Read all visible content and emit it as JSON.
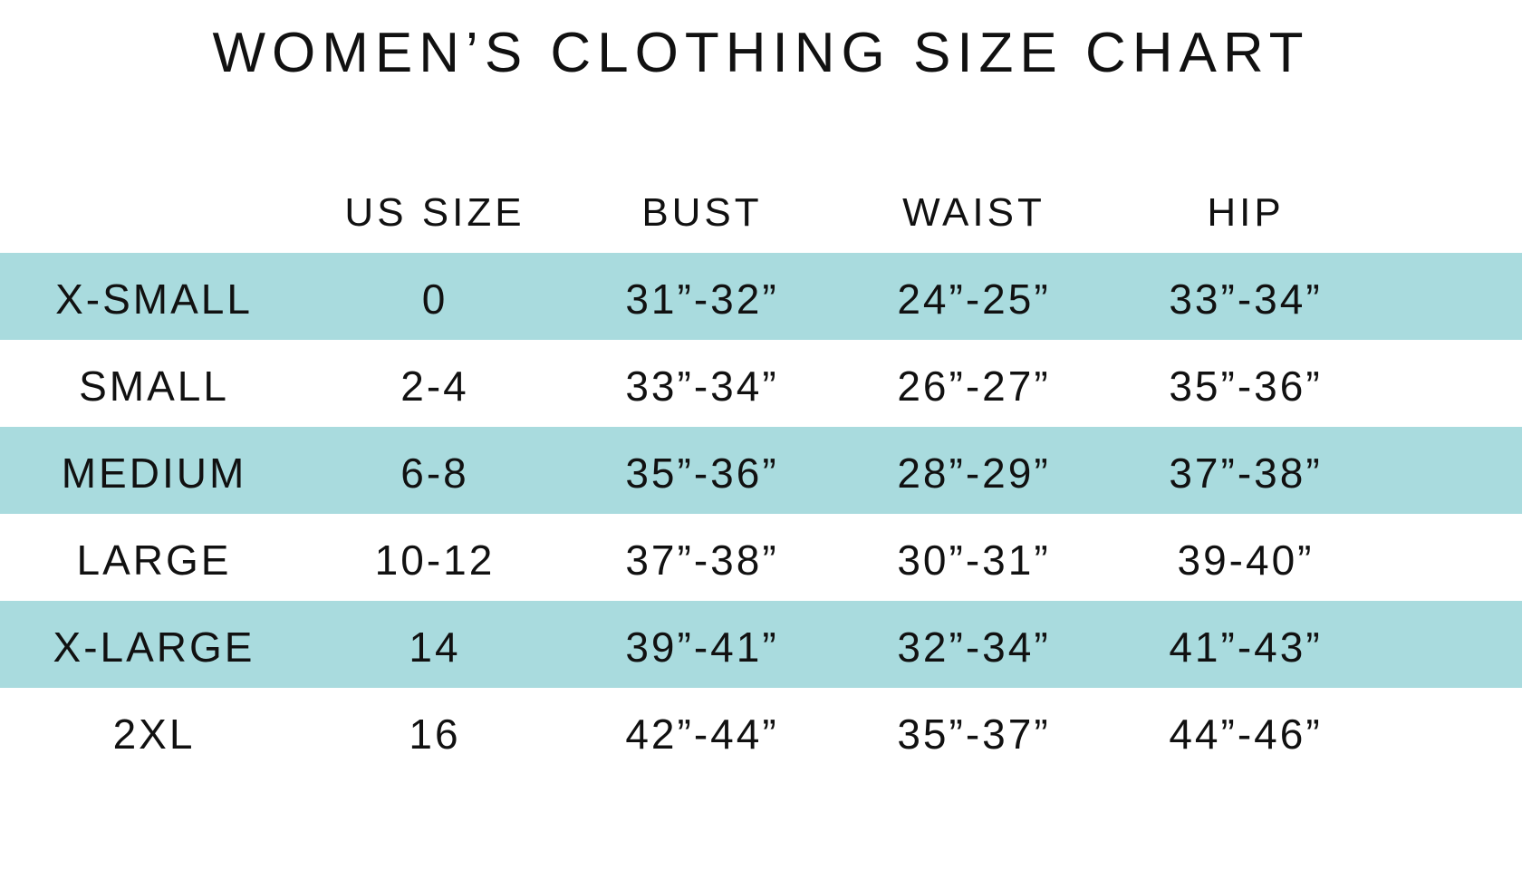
{
  "title": "WOMEN’S CLOTHING SIZE CHART",
  "colors": {
    "row_highlight": "#A9DBDE",
    "text": "#111111",
    "background": "#FFFFFF"
  },
  "chart_data": {
    "type": "table",
    "title": "WOMEN’S CLOTHING SIZE CHART",
    "columns": [
      "",
      "US SIZE",
      "BUST",
      "WAIST",
      "HIP"
    ],
    "rows": [
      [
        "X-SMALL",
        "0",
        "31”-32”",
        "24”-25”",
        "33”-34”"
      ],
      [
        "SMALL",
        "2-4",
        "33”-34”",
        "26”-27”",
        "35”-36”"
      ],
      [
        "MEDIUM",
        "6-8",
        "35”-36”",
        "28”-29”",
        "37”-38”"
      ],
      [
        "LARGE",
        "10-12",
        "37”-38”",
        "30”-31”",
        "39-40”"
      ],
      [
        "X-LARGE",
        "14",
        "39”-41”",
        "32”-34”",
        "41”-43”"
      ],
      [
        "2XL",
        "16",
        "42”-44”",
        "35”-37”",
        "44”-46”"
      ]
    ],
    "highlighted_rows": [
      0,
      2,
      4
    ],
    "row_highlight_color": "#A9DBDE",
    "legend": "none",
    "grid": "off"
  }
}
